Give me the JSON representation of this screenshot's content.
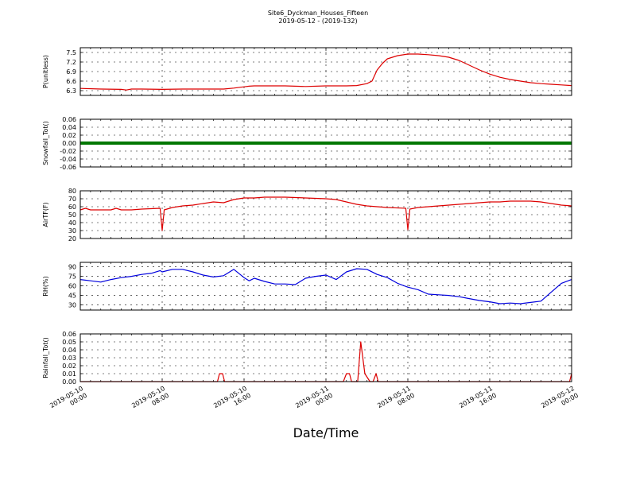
{
  "figure": {
    "title_line1": "Site6_Dyckman_Houses_Fifteen",
    "title_line2": "2019-05-12 - (2019-132)",
    "xlabel": "Date/Time",
    "xticks": [
      [
        "2019-05-10",
        "00:00"
      ],
      [
        "2019-05-10",
        "08:00"
      ],
      [
        "2019-05-10",
        "16:00"
      ],
      [
        "2019-05-11",
        "00:00"
      ],
      [
        "2019-05-11",
        "08:00"
      ],
      [
        "2019-05-11",
        "16:00"
      ],
      [
        "2019-05-12",
        "00:00"
      ]
    ]
  },
  "chart_data": [
    {
      "type": "line",
      "ylabel": "P(unitless)",
      "color": "#dd0000",
      "ylim": [
        6.15,
        7.65
      ],
      "yticks": [
        6.3,
        6.6,
        6.9,
        7.2,
        7.5
      ],
      "tick_format": 1,
      "grid": true,
      "x_hours": [
        0,
        2,
        4,
        4.5,
        5,
        6,
        8,
        10,
        14,
        15,
        16,
        16.5,
        17,
        18,
        20,
        22,
        24,
        25,
        26,
        27,
        28,
        28.5,
        29,
        29.5,
        30,
        31,
        32,
        33,
        34,
        35,
        36,
        37,
        38,
        39,
        40,
        41,
        42,
        43,
        44,
        45,
        46,
        47,
        48
      ],
      "values": [
        6.37,
        6.35,
        6.34,
        6.32,
        6.35,
        6.35,
        6.34,
        6.35,
        6.35,
        6.38,
        6.42,
        6.44,
        6.45,
        6.45,
        6.45,
        6.43,
        6.45,
        6.45,
        6.45,
        6.46,
        6.52,
        6.6,
        6.95,
        7.15,
        7.3,
        7.4,
        7.45,
        7.45,
        7.43,
        7.4,
        7.35,
        7.25,
        7.1,
        6.95,
        6.82,
        6.72,
        6.65,
        6.6,
        6.55,
        6.52,
        6.5,
        6.48,
        6.46
      ]
    },
    {
      "type": "line",
      "ylabel": "Snowfall_Tot()",
      "color": "#007700",
      "ylim": [
        -0.06,
        0.06
      ],
      "yticks": [
        -0.06,
        -0.04,
        -0.02,
        0.0,
        0.02,
        0.04,
        0.06
      ],
      "tick_format": 2,
      "grid": true,
      "x_hours": [
        0,
        48
      ],
      "values": [
        0,
        0
      ]
    },
    {
      "type": "line",
      "ylabel": "AirTF(F)",
      "color": "#dd0000",
      "ylim": [
        20,
        80
      ],
      "yticks": [
        20,
        30,
        40,
        50,
        60,
        70,
        80
      ],
      "tick_format": 0,
      "grid": true,
      "x_hours": [
        0,
        0.5,
        1,
        2,
        3,
        3.5,
        4,
        5,
        6,
        7.8,
        8,
        8.2,
        9,
        10,
        11,
        12,
        13,
        14,
        15,
        16,
        17,
        18,
        20,
        22,
        24,
        25,
        26,
        27,
        28,
        29,
        30,
        31.8,
        32,
        32.2,
        33,
        34,
        35,
        36,
        37,
        38,
        39,
        40,
        41,
        42,
        43,
        44,
        45,
        46,
        47,
        48
      ],
      "values": [
        56,
        58,
        56,
        56,
        56,
        58,
        56,
        56,
        57,
        58,
        30,
        56,
        59,
        61,
        62,
        64,
        66,
        65,
        69,
        71,
        71,
        72,
        72,
        71,
        70,
        69,
        66,
        63,
        61,
        60,
        59,
        58,
        31,
        57,
        59,
        60,
        61,
        62,
        63,
        64,
        65,
        66,
        66,
        67,
        67,
        67,
        66,
        64,
        62,
        61
      ]
    },
    {
      "type": "line",
      "ylabel": "RH(%)",
      "color": "#0000dd",
      "ylim": [
        22,
        97
      ],
      "yticks": [
        30,
        45,
        60,
        75,
        90
      ],
      "tick_format": 0,
      "grid": true,
      "x_hours": [
        0,
        1,
        2,
        3,
        4,
        5,
        6,
        7,
        7.8,
        8,
        9,
        10,
        11,
        12,
        13,
        14,
        15,
        16,
        16.5,
        17,
        18,
        19,
        20,
        21,
        22,
        23,
        24,
        25,
        26,
        27,
        28,
        29,
        30,
        31,
        32,
        33,
        34,
        35,
        36,
        37,
        38,
        39,
        40,
        41,
        42,
        43,
        44,
        45,
        46,
        47,
        48
      ],
      "values": [
        70,
        68,
        66,
        70,
        73,
        75,
        78,
        80,
        84,
        82,
        86,
        86,
        82,
        77,
        74,
        76,
        86,
        73,
        68,
        72,
        67,
        63,
        63,
        62,
        72,
        75,
        77,
        70,
        82,
        87,
        86,
        78,
        73,
        64,
        58,
        54,
        47,
        46,
        45,
        43,
        40,
        37,
        35,
        32,
        33,
        32,
        34,
        36,
        50,
        64,
        70
      ]
    },
    {
      "type": "line",
      "ylabel": "Rainfall_Tot()",
      "color": "#dd0000",
      "ylim": [
        0,
        0.06
      ],
      "yticks": [
        0.0,
        0.01,
        0.02,
        0.03,
        0.04,
        0.05,
        0.06
      ],
      "tick_format": 2,
      "grid": true,
      "x_hours": [
        0,
        13.4,
        13.6,
        13.9,
        14.1,
        25.7,
        26.0,
        26.3,
        26.5,
        27.1,
        27.4,
        27.8,
        28.3,
        28.6,
        28.9,
        29.1,
        47.8,
        48
      ],
      "values": [
        0,
        0,
        0.01,
        0.01,
        0,
        0,
        0.01,
        0.01,
        0,
        0,
        0.05,
        0.01,
        0,
        0,
        0.01,
        0,
        0,
        0.01
      ]
    }
  ]
}
